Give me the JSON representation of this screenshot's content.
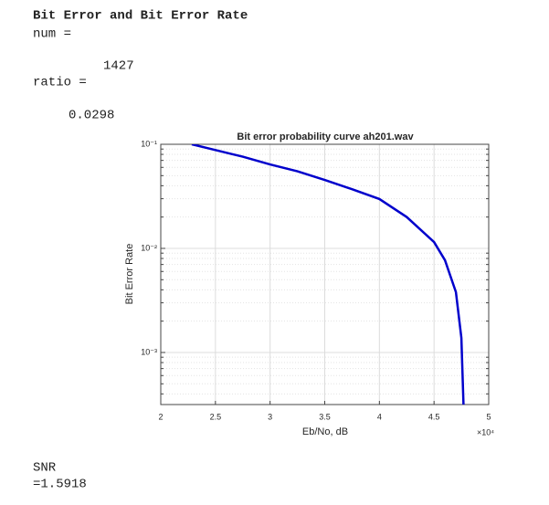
{
  "header": {
    "title": "Bit Error and Bit Error Rate"
  },
  "output": {
    "num_label": "num =",
    "num": "1427",
    "ratio_label": "ratio =",
    "ratio": "0.0298",
    "snr_label": "SNR",
    "snr": "=1.5918"
  },
  "chart_data": {
    "type": "line",
    "title": "Bit error probability curve ah201.wav",
    "xlabel": "Eb/No, dB",
    "ylabel": "Bit Error Rate",
    "x_multiplier": "×10⁴",
    "x": [
      22840,
      25000,
      27500,
      30000,
      32500,
      35000,
      37500,
      40000,
      42500,
      45000,
      46000,
      47000,
      47500,
      47700
    ],
    "series": [
      {
        "color": "#0000cc",
        "values": [
          0.1,
          0.088,
          0.076,
          0.064,
          0.055,
          0.0454,
          0.037,
          0.0298,
          0.02,
          0.0115,
          0.0077,
          0.0038,
          0.00138,
          0.0003
        ]
      }
    ],
    "xlim": [
      20000,
      50000
    ],
    "xticks": [
      {
        "value": 20000,
        "label": "2"
      },
      {
        "value": 25000,
        "label": "2.5"
      },
      {
        "value": 30000,
        "label": "3"
      },
      {
        "value": 35000,
        "label": "3.5"
      },
      {
        "value": 40000,
        "label": "4"
      },
      {
        "value": 45000,
        "label": "4.5"
      },
      {
        "value": 50000,
        "label": "5"
      }
    ],
    "ylim": [
      0.000316,
      0.1
    ],
    "yscale": "log",
    "yticks": [
      {
        "value": 0.001,
        "label": "10⁻³"
      },
      {
        "value": 0.01,
        "label": "10⁻²"
      },
      {
        "value": 0.1,
        "label": "10⁻¹"
      }
    ],
    "grid": true
  }
}
